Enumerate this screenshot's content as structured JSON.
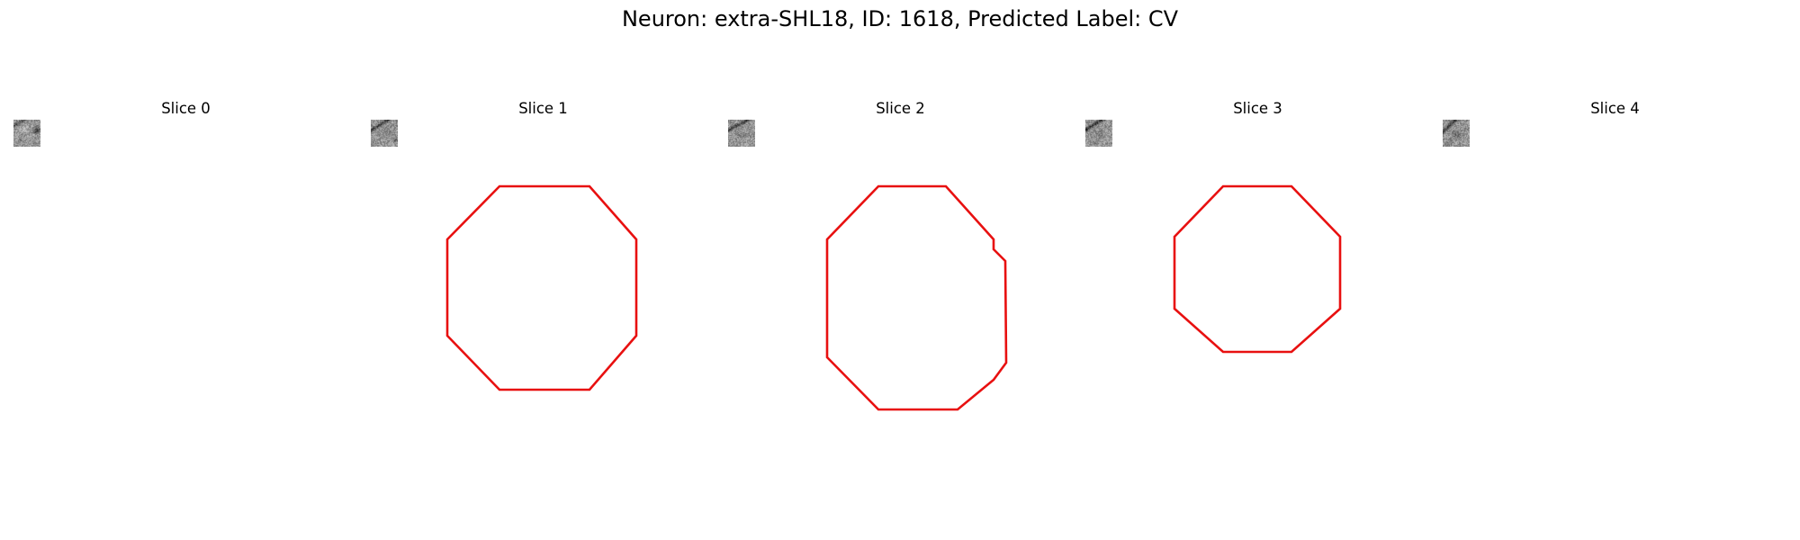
{
  "figure": {
    "title": "Neuron: extra-SHL18, ID: 1618, Predicted Label: CV",
    "contour_color": "#e81010"
  },
  "panels": [
    {
      "title": "Slice 0",
      "image": "grayscale-microscopy-slice",
      "has_contour": false
    },
    {
      "title": "Slice 1",
      "image": "grayscale-microscopy-slice",
      "has_contour": true
    },
    {
      "title": "Slice 2",
      "image": "grayscale-microscopy-slice",
      "has_contour": true
    },
    {
      "title": "Slice 3",
      "image": "grayscale-microscopy-slice",
      "has_contour": true
    },
    {
      "title": "Slice 4",
      "image": "grayscale-microscopy-slice",
      "has_contour": false
    }
  ]
}
